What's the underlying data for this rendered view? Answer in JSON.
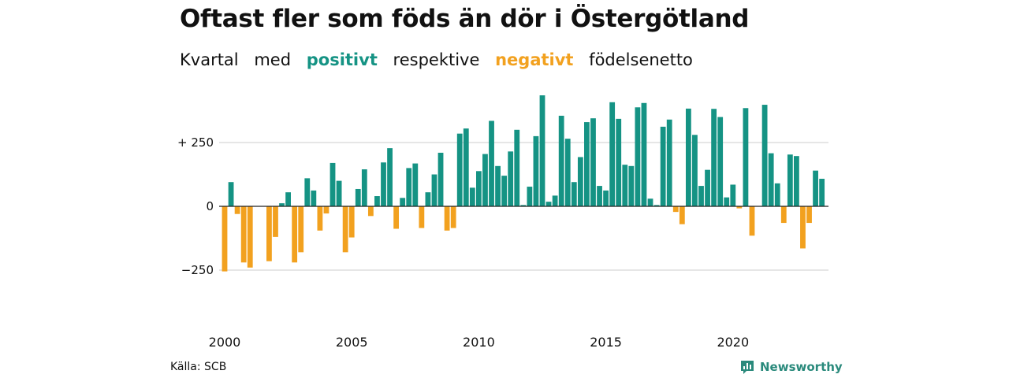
{
  "title": "Oftast fler som föds än dör i Östergötland",
  "subtitle": {
    "part1": "Kvartal",
    "part2": "med",
    "positive_word": "positivt",
    "part3": "respektive",
    "negative_word": "negativt",
    "part4": "födelsenetto"
  },
  "colors": {
    "positive": "#159384",
    "negative": "#f2a11f",
    "grid": "#dddddd",
    "zero_line": "#222222"
  },
  "source": "Källa: SCB",
  "brand": {
    "name": "Newsworthy",
    "icon": "bar-chart-logo-icon"
  },
  "chart_data": {
    "type": "bar",
    "title": "Oftast fler som föds än dör i Östergötland",
    "subtitle": "Kvartal med positivt respektive negativt födelsenetto",
    "x_start": "2000 Q1",
    "frequency": "quarter",
    "x_tick_labels": [
      "2000",
      "2005",
      "2010",
      "2015",
      "2020"
    ],
    "y_tick_labels": [
      "+ 250",
      "0",
      "−250"
    ],
    "y_ticks": [
      250,
      0,
      -250
    ],
    "ylim": [
      -350,
      430
    ],
    "grid": "horizontal",
    "values": [
      -255,
      95,
      -30,
      -220,
      -240,
      0,
      0,
      -215,
      -120,
      12,
      55,
      -220,
      -180,
      110,
      62,
      -95,
      -28,
      170,
      100,
      -180,
      -122,
      68,
      145,
      -38,
      40,
      172,
      228,
      -88,
      33,
      150,
      168,
      -85,
      55,
      125,
      210,
      -95,
      -85,
      285,
      305,
      73,
      138,
      205,
      335,
      158,
      120,
      215,
      300,
      5,
      77,
      275,
      435,
      18,
      42,
      355,
      265,
      95,
      193,
      330,
      345,
      80,
      62,
      408,
      343,
      163,
      158,
      388,
      405,
      30,
      5,
      312,
      340,
      -22,
      -70,
      383,
      280,
      80,
      143,
      382,
      350,
      35,
      85,
      -8,
      385,
      -115,
      0,
      398,
      208,
      90,
      -65,
      203,
      197,
      -165,
      -65,
      140,
      108
    ]
  }
}
